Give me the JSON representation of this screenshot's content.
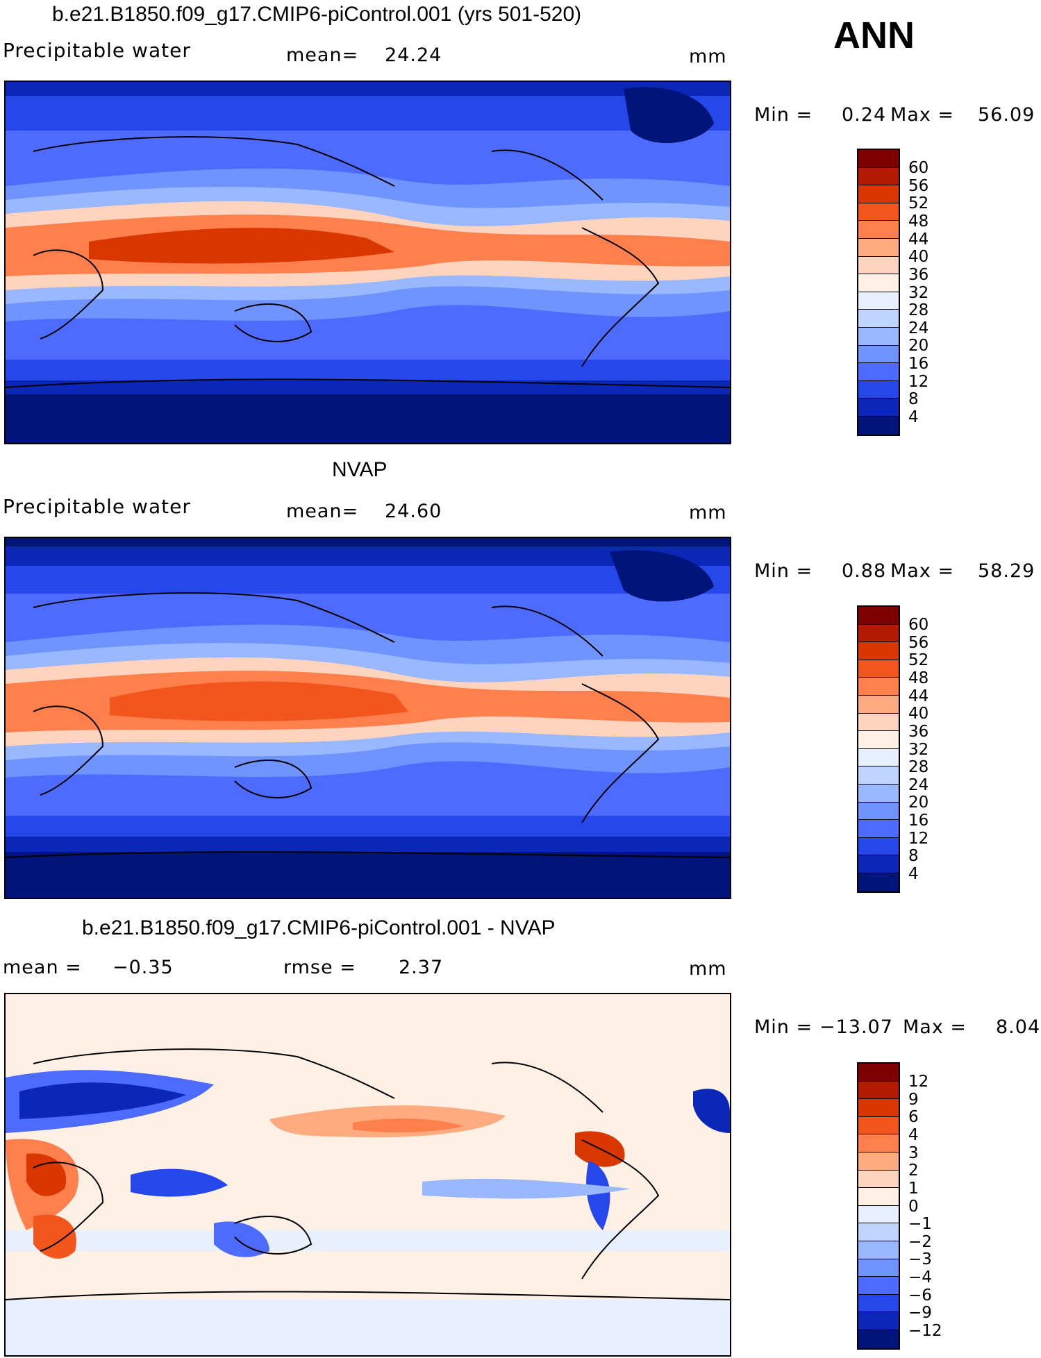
{
  "season": "ANN",
  "panels": [
    {
      "title": "b.e21.B1850.f09_g17.CMIP6-piControl.001 (yrs 501-520)",
      "left_label": "Precipitable water",
      "mean_label": "mean=",
      "mean_value": "24.24",
      "units": "mm",
      "min_label": "Min =",
      "min_value": "0.24",
      "max_label": "Max =",
      "max_value": "56.09",
      "ticks": [
        "60",
        "56",
        "52",
        "48",
        "44",
        "40",
        "36",
        "32",
        "28",
        "24",
        "20",
        "16",
        "12",
        "8",
        "4"
      ],
      "colors": [
        "#7f0000",
        "#b31a00",
        "#d93600",
        "#f2561d",
        "#ff7f4d",
        "#ffab80",
        "#ffd4bf",
        "#fff0e6",
        "#e6f0ff",
        "#bfd4ff",
        "#99b8ff",
        "#7094ff",
        "#4d6cff",
        "#2647ea",
        "#0a27b8",
        "#00147a"
      ]
    },
    {
      "title": "NVAP",
      "left_label": "Precipitable water",
      "mean_label": "mean=",
      "mean_value": "24.60",
      "units": "mm",
      "min_label": "Min =",
      "min_value": "0.88",
      "max_label": "Max =",
      "max_value": "58.29",
      "ticks": [
        "60",
        "56",
        "52",
        "48",
        "44",
        "40",
        "36",
        "32",
        "28",
        "24",
        "20",
        "16",
        "12",
        "8",
        "4"
      ],
      "colors": [
        "#7f0000",
        "#b31a00",
        "#d93600",
        "#f2561d",
        "#ff7f4d",
        "#ffab80",
        "#ffd4bf",
        "#fff0e6",
        "#e6f0ff",
        "#bfd4ff",
        "#99b8ff",
        "#7094ff",
        "#4d6cff",
        "#2647ea",
        "#0a27b8",
        "#00147a"
      ]
    },
    {
      "title": "b.e21.B1850.f09_g17.CMIP6-piControl.001 - NVAP",
      "left_label": "mean =",
      "left_value": "−0.35",
      "rmse_label": "rmse =",
      "rmse_value": "2.37",
      "units": "mm",
      "min_label": "Min =",
      "min_value": "−13.07",
      "max_label": "Max =",
      "max_value": "8.04",
      "ticks": [
        "12",
        "9",
        "6",
        "4",
        "3",
        "2",
        "1",
        "0",
        "−1",
        "−2",
        "−3",
        "−4",
        "−6",
        "−9",
        "−12"
      ],
      "colors": [
        "#7f0000",
        "#b31a00",
        "#d93600",
        "#f2561d",
        "#ff7f4d",
        "#ffab80",
        "#ffd4bf",
        "#fff0e6",
        "#e6f0ff",
        "#bfd4ff",
        "#99b8ff",
        "#7094ff",
        "#4d6cff",
        "#2647ea",
        "#0a27b8",
        "#00147a"
      ]
    }
  ]
}
